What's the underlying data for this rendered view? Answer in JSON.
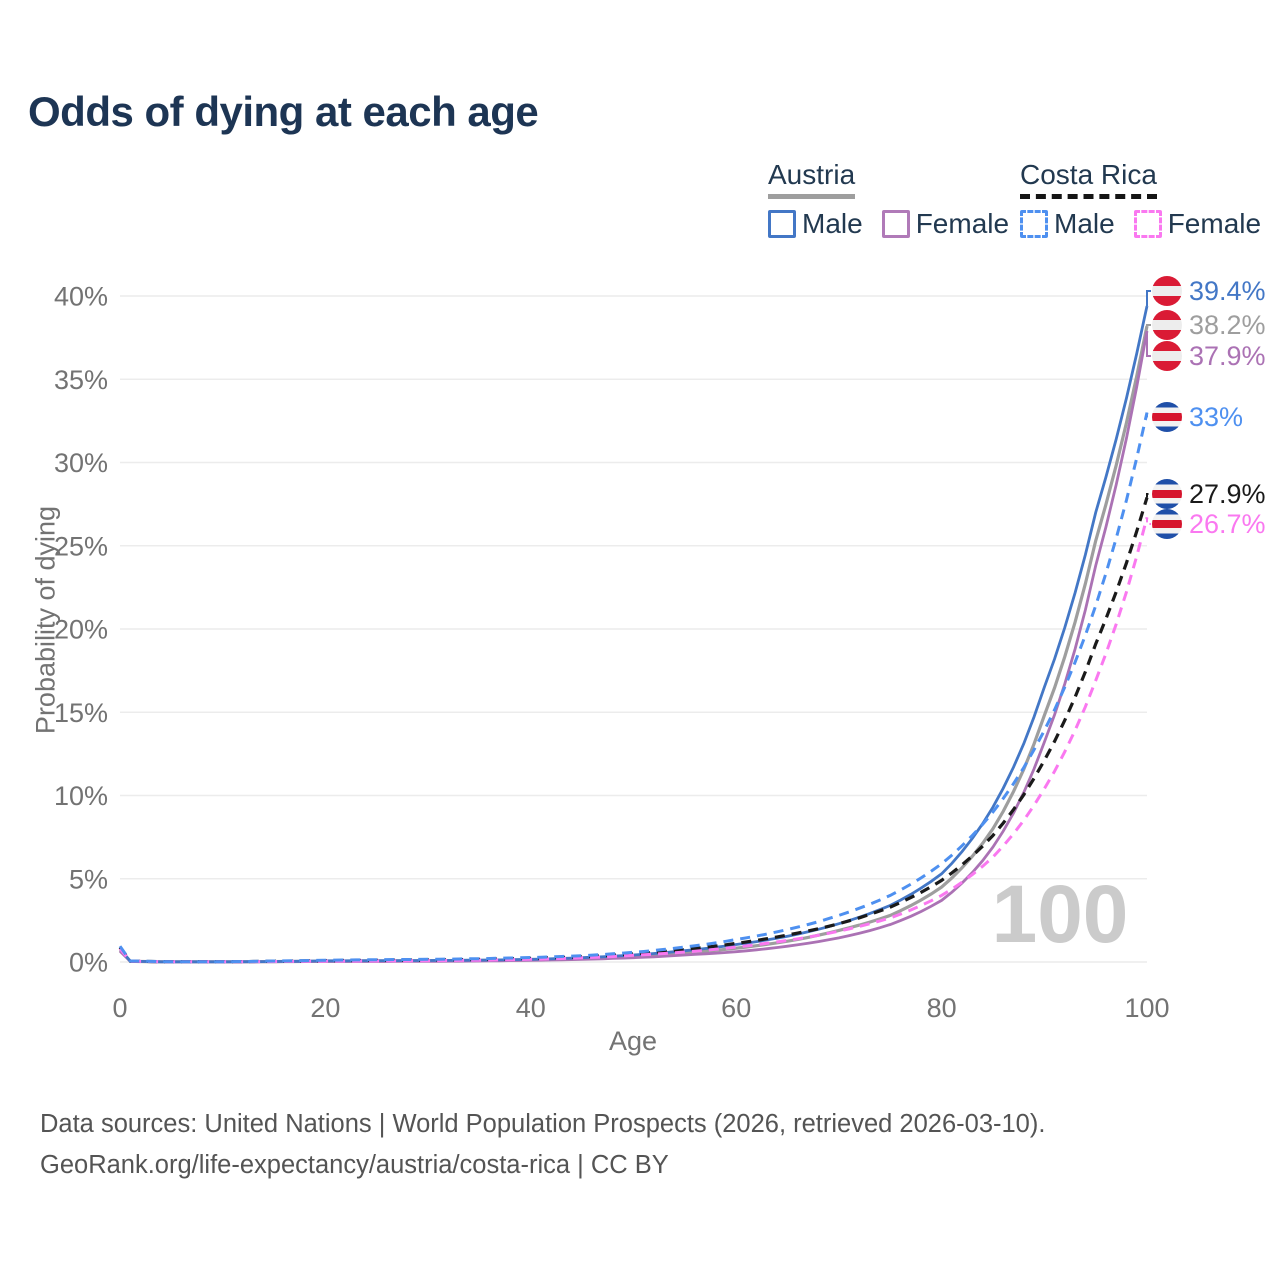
{
  "title": "Odds of dying at each age",
  "legend": {
    "groups": [
      {
        "label": "Austria",
        "line_style": "solid",
        "underline_color": "#9e9e9e",
        "items": [
          {
            "label": "Male",
            "color": "#4377c6",
            "dashed": false
          },
          {
            "label": "Female",
            "color": "#b07ab8",
            "dashed": false
          }
        ]
      },
      {
        "label": "Costa Rica",
        "line_style": "dashed",
        "underline_color": "#151515",
        "items": [
          {
            "label": "Male",
            "color": "#4e90f0",
            "dashed": true
          },
          {
            "label": "Female",
            "color": "#fa78f0",
            "dashed": true
          }
        ]
      }
    ]
  },
  "chart_data": {
    "type": "line",
    "title": "Odds of dying at each age",
    "x_axis": {
      "label": "Age",
      "ticks": [
        "0",
        "20",
        "40",
        "60",
        "80",
        "100"
      ],
      "range": [
        0,
        100
      ]
    },
    "y_axis": {
      "label": "Probability of dying",
      "ticks": [
        "0%",
        "5%",
        "10%",
        "15%",
        "20%",
        "25%",
        "30%",
        "35%",
        "40%"
      ],
      "range_percent": [
        0,
        40
      ]
    },
    "grid": "horizontal-only",
    "legend_position": "top-right",
    "watermark": "100",
    "ages": [
      0,
      1,
      5,
      10,
      15,
      20,
      25,
      30,
      35,
      40,
      45,
      50,
      55,
      60,
      65,
      70,
      75,
      80,
      85,
      90,
      95,
      100
    ],
    "series": [
      {
        "name": "Austria Male",
        "country": "Austria",
        "sex": "Male",
        "flag": "austria",
        "color": "#4377c6",
        "label_color": "#4377c6",
        "dashed": false,
        "width": 2.8,
        "end_label": "39.4%",
        "values_percent": [
          0.8,
          0.05,
          0.01,
          0.01,
          0.03,
          0.07,
          0.08,
          0.09,
          0.11,
          0.16,
          0.26,
          0.42,
          0.68,
          1.05,
          1.55,
          2.3,
          3.4,
          5.3,
          9.3,
          16.5,
          27.0,
          39.4
        ]
      },
      {
        "name": "Austria Both sexes",
        "country": "Austria",
        "sex": "Both",
        "flag": "austria",
        "color": "#9e9e9e",
        "label_color": "#9e9e9e",
        "dashed": false,
        "width": 3.2,
        "end_label": "38.2%",
        "values_percent": [
          0.72,
          0.045,
          0.01,
          0.01,
          0.025,
          0.05,
          0.06,
          0.07,
          0.09,
          0.13,
          0.21,
          0.34,
          0.55,
          0.83,
          1.25,
          1.9,
          2.8,
          4.5,
          8.0,
          14.8,
          25.3,
          38.2
        ]
      },
      {
        "name": "Austria Female",
        "country": "Austria",
        "sex": "Female",
        "flag": "austria",
        "color": "#ab72b4",
        "label_color": "#ab72b4",
        "dashed": false,
        "width": 2.8,
        "end_label": "37.9%",
        "values_percent": [
          0.65,
          0.04,
          0.01,
          0.01,
          0.02,
          0.03,
          0.03,
          0.04,
          0.06,
          0.1,
          0.16,
          0.26,
          0.42,
          0.62,
          0.95,
          1.45,
          2.25,
          3.7,
          6.9,
          13.2,
          23.8,
          37.9
        ]
      },
      {
        "name": "Costa Rica Male",
        "country": "Costa Rica",
        "sex": "Male",
        "flag": "costa_rica",
        "color": "#4e90f0",
        "label_color": "#4e90f0",
        "dashed": true,
        "width": 3,
        "end_label": "33%",
        "values_percent": [
          0.95,
          0.06,
          0.02,
          0.02,
          0.06,
          0.11,
          0.14,
          0.16,
          0.2,
          0.27,
          0.38,
          0.58,
          0.9,
          1.35,
          1.95,
          2.8,
          4.0,
          5.9,
          9.0,
          13.9,
          21.4,
          33.0
        ]
      },
      {
        "name": "Costa Rica Both sexes",
        "country": "Costa Rica",
        "sex": "Both",
        "flag": "costa_rica",
        "color": "#1a1a1a",
        "label_color": "#1a1a1a",
        "dashed": true,
        "width": 3.2,
        "end_label": "27.9%",
        "values_percent": [
          0.88,
          0.055,
          0.018,
          0.018,
          0.045,
          0.08,
          0.1,
          0.12,
          0.16,
          0.22,
          0.31,
          0.49,
          0.75,
          1.12,
          1.62,
          2.3,
          3.3,
          4.9,
          7.6,
          12.1,
          19.1,
          27.9
        ]
      },
      {
        "name": "Costa Rica Female",
        "country": "Costa Rica",
        "sex": "Female",
        "flag": "costa_rica",
        "color": "#fa78f0",
        "label_color": "#fa78f0",
        "dashed": true,
        "width": 3,
        "end_label": "26.7%",
        "values_percent": [
          0.8,
          0.05,
          0.015,
          0.015,
          0.03,
          0.05,
          0.06,
          0.08,
          0.11,
          0.16,
          0.25,
          0.4,
          0.6,
          0.9,
          1.3,
          1.85,
          2.65,
          4.0,
          6.3,
          10.4,
          16.9,
          26.7
        ]
      }
    ]
  },
  "footer": {
    "line1": "Data sources: United Nations | World Population Prospects (2026, retrieved 2026-03-10).",
    "line2": "GeoRank.org/life-expectancy/austria/costa-rica | CC BY"
  }
}
